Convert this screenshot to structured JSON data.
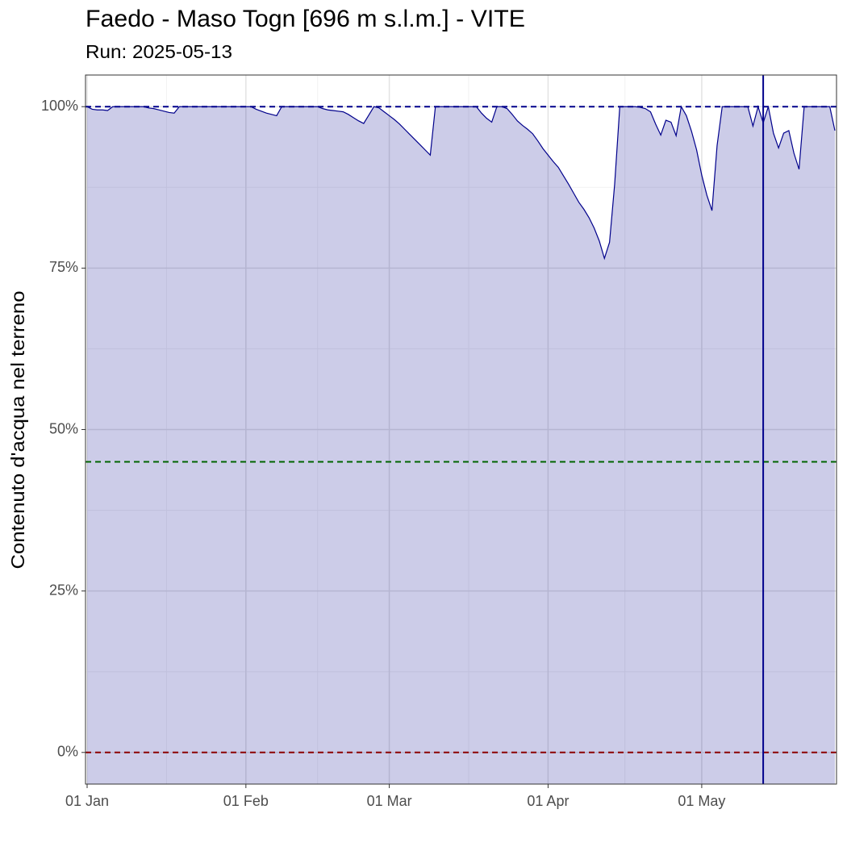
{
  "chart_data": {
    "type": "area",
    "title": "Faedo - Maso Togn [696 m s.l.m.] - VITE",
    "subtitle": "Run: 2025-05-13",
    "y_label": "Contenuto d'acqua nel terreno",
    "x": [
      "01 Jan",
      "02 Jan",
      "03 Jan",
      "04 Jan",
      "05 Jan",
      "06 Jan",
      "07 Jan",
      "08 Jan",
      "09 Jan",
      "10 Jan",
      "11 Jan",
      "12 Jan",
      "13 Jan",
      "14 Jan",
      "15 Jan",
      "16 Jan",
      "17 Jan",
      "18 Jan",
      "19 Jan",
      "20 Jan",
      "21 Jan",
      "22 Jan",
      "23 Jan",
      "24 Jan",
      "25 Jan",
      "26 Jan",
      "27 Jan",
      "28 Jan",
      "29 Jan",
      "30 Jan",
      "31 Jan",
      "01 Feb",
      "02 Feb",
      "03 Feb",
      "04 Feb",
      "05 Feb",
      "06 Feb",
      "07 Feb",
      "08 Feb",
      "09 Feb",
      "10 Feb",
      "11 Feb",
      "12 Feb",
      "13 Feb",
      "14 Feb",
      "15 Feb",
      "16 Feb",
      "17 Feb",
      "18 Feb",
      "19 Feb",
      "20 Feb",
      "21 Feb",
      "22 Feb",
      "23 Feb",
      "24 Feb",
      "25 Feb",
      "26 Feb",
      "27 Feb",
      "28 Feb",
      "01 Mar",
      "02 Mar",
      "03 Mar",
      "04 Mar",
      "05 Mar",
      "06 Mar",
      "07 Mar",
      "08 Mar",
      "09 Mar",
      "10 Mar",
      "11 Mar",
      "12 Mar",
      "13 Mar",
      "14 Mar",
      "15 Mar",
      "16 Mar",
      "17 Mar",
      "18 Mar",
      "19 Mar",
      "20 Mar",
      "21 Mar",
      "22 Mar",
      "23 Mar",
      "24 Mar",
      "25 Mar",
      "26 Mar",
      "27 Mar",
      "28 Mar",
      "29 Mar",
      "30 Mar",
      "31 Mar",
      "01 Apr",
      "02 Apr",
      "03 Apr",
      "04 Apr",
      "05 Apr",
      "06 Apr",
      "07 Apr",
      "08 Apr",
      "09 Apr",
      "10 Apr",
      "11 Apr",
      "12 Apr",
      "13 Apr",
      "14 Apr",
      "15 Apr",
      "16 Apr",
      "17 Apr",
      "18 Apr",
      "19 Apr",
      "20 Apr",
      "21 Apr",
      "22 Apr",
      "23 Apr",
      "24 Apr",
      "25 Apr",
      "26 Apr",
      "27 Apr",
      "28 Apr",
      "29 Apr",
      "30 Apr",
      "01 May",
      "02 May",
      "03 May",
      "04 May",
      "05 May",
      "06 May",
      "07 May",
      "08 May",
      "09 May",
      "10 May",
      "11 May",
      "12 May",
      "13 May",
      "14 May",
      "15 May",
      "16 May",
      "17 May",
      "18 May",
      "19 May",
      "20 May",
      "21 May",
      "22 May",
      "23 May",
      "24 May",
      "25 May",
      "26 May",
      "27 May"
    ],
    "values": [
      100,
      99.6,
      99.5,
      99.5,
      99.4,
      100,
      100,
      100,
      100,
      100,
      100,
      100,
      99.8,
      99.7,
      99.5,
      99.3,
      99.1,
      99.0,
      100,
      100,
      100,
      100,
      100,
      100,
      100,
      100,
      100,
      100,
      100,
      100,
      100,
      100,
      100,
      99.6,
      99.3,
      99.0,
      98.8,
      98.6,
      100,
      100,
      100,
      100,
      100,
      100,
      100,
      100,
      99.7,
      99.5,
      99.4,
      99.3,
      99.2,
      98.8,
      98.3,
      97.8,
      97.4,
      98.7,
      100,
      99.8,
      99.2,
      98.6,
      98.0,
      97.3,
      96.5,
      95.7,
      94.9,
      94.1,
      93.3,
      92.5,
      100,
      100,
      100,
      100,
      100,
      100,
      100,
      100,
      100,
      99.0,
      98.2,
      97.6,
      100,
      100,
      99.7,
      98.8,
      97.8,
      97.1,
      96.5,
      95.8,
      94.7,
      93.5,
      92.5,
      91.5,
      90.6,
      89.3,
      88.0,
      86.6,
      85.2,
      84.1,
      82.8,
      81.2,
      79.2,
      76.5,
      79.0,
      88.0,
      100,
      100,
      100,
      100,
      99.9,
      99.7,
      99.2,
      97.3,
      95.6,
      97.9,
      97.6,
      95.5,
      100,
      98.6,
      96.2,
      93.3,
      89.4,
      86.3,
      83.9,
      94.0,
      100,
      100,
      100,
      100,
      100,
      100,
      97.0,
      100,
      97.5,
      100,
      95.9,
      93.6,
      95.9,
      96.3,
      92.8,
      90.3,
      100,
      100,
      100,
      100,
      100,
      100,
      96.3
    ],
    "color": "#00008b",
    "fill_opacity": 0.2,
    "xticks": [
      "01 Jan",
      "01 Feb",
      "01 Mar",
      "01 Apr",
      "01 May"
    ],
    "ylim": [
      -4.9,
      104.9
    ],
    "yticks": [
      {
        "value": 0,
        "label": "0%"
      },
      {
        "value": 25,
        "label": "25%"
      },
      {
        "value": 50,
        "label": "50%"
      },
      {
        "value": 75,
        "label": "75%"
      },
      {
        "value": 100,
        "label": "100%"
      }
    ],
    "reference_lines": [
      {
        "value": 100,
        "color": "#00008b"
      },
      {
        "value": 45,
        "color": "#006400"
      },
      {
        "value": 0,
        "color": "#8b0000"
      }
    ],
    "vline": {
      "x": "13 May",
      "color": "#00008b"
    },
    "grid": true
  }
}
